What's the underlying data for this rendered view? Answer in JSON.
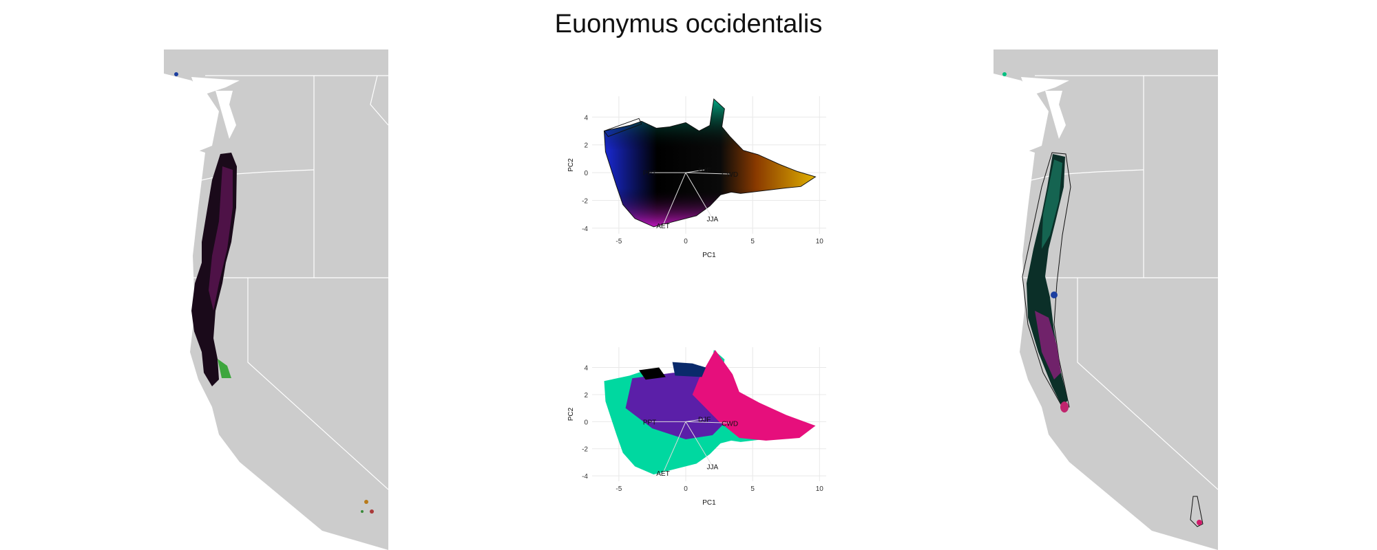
{
  "title": "Euonymus occidentalis",
  "chart_data": [
    {
      "type": "map",
      "panel": "left",
      "description_colors": [
        "#000000",
        "#c21ab5",
        "#1e7a3a",
        "#2b6fd6",
        "#ffffff"
      ]
    },
    {
      "type": "scatter",
      "panel": "top",
      "xlabel": "PC1",
      "ylabel": "PC2",
      "xlim": [
        -7,
        10.5
      ],
      "ylim": [
        -4.4,
        5.5
      ],
      "xticks": [
        -5,
        0,
        5,
        10
      ],
      "yticks": [
        -4,
        -2,
        0,
        2,
        4
      ],
      "grid": true,
      "vectors": [
        {
          "label": "PPT",
          "x": -2.7,
          "y": 0.0
        },
        {
          "label": "DJF",
          "x": 1.4,
          "y": 0.2
        },
        {
          "label": "CWD",
          "x": 3.3,
          "y": -0.1
        },
        {
          "label": "JJA",
          "x": 2.0,
          "y": -3.3
        },
        {
          "label": "AET",
          "x": -1.7,
          "y": -3.8
        }
      ]
    },
    {
      "type": "scatter",
      "panel": "bottom",
      "xlabel": "PC1",
      "ylabel": "PC2",
      "xlim": [
        -7,
        10.5
      ],
      "ylim": [
        -4.4,
        5.5
      ],
      "xticks": [
        -5,
        0,
        5,
        10
      ],
      "yticks": [
        -4,
        -2,
        0,
        2,
        4
      ],
      "grid": true,
      "vectors": [
        {
          "label": "PPT",
          "x": -2.7,
          "y": 0.0
        },
        {
          "label": "DJF",
          "x": 1.4,
          "y": 0.2
        },
        {
          "label": "CWD",
          "x": 3.3,
          "y": -0.1
        },
        {
          "label": "JJA",
          "x": 2.0,
          "y": -3.3
        },
        {
          "label": "AET",
          "x": -1.7,
          "y": -3.8
        }
      ],
      "cluster_colors": [
        "#00d8a0",
        "#5b1fa8",
        "#e60f7c",
        "#0a2a6b",
        "#000000"
      ]
    },
    {
      "type": "map",
      "panel": "right",
      "description_colors": [
        "#0a4d3e",
        "#000000",
        "#8a1f7a",
        "#1c3fa0"
      ]
    }
  ]
}
